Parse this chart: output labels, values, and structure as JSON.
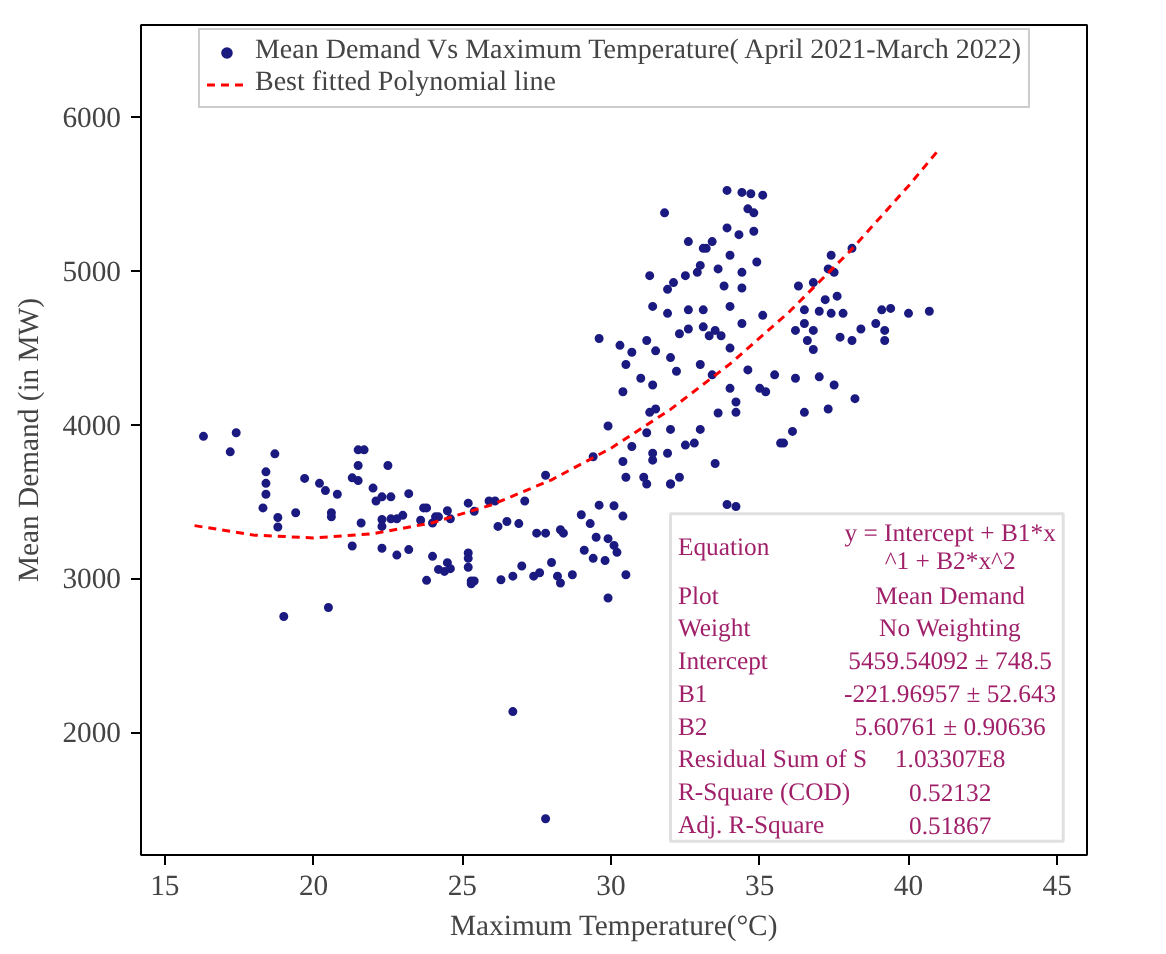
{
  "chart_data": {
    "type": "scatter",
    "xlabel": "Maximum Temperature(°C)",
    "ylabel": "Mean Demand (in MW)",
    "xlim": [
      14.2,
      46
    ],
    "ylim": [
      1200,
      6600
    ],
    "xticks": [
      15,
      20,
      25,
      30,
      35,
      40,
      45
    ],
    "yticks": [
      2000,
      3000,
      4000,
      5000,
      6000
    ],
    "grid": false,
    "legend": "top",
    "series": [
      {
        "name": "Mean Demand Vs Maximum Temperature( April 2021-March 2022)",
        "color": "#1a1a80",
        "marker": "circle",
        "x": [
          16.3,
          17.4,
          17.2,
          18.7,
          18.4,
          18.4,
          18.4,
          18.3,
          18.8,
          18.8,
          19.4,
          19.7,
          20.2,
          20.4,
          20.8,
          20.6,
          20.6,
          21.3,
          21.5,
          21.5,
          21.7,
          21.5,
          22.5,
          22.0,
          22.1,
          22.3,
          22.6,
          23.2,
          21.6,
          22.3,
          22.3,
          22.6,
          22.8,
          23.0,
          23.6,
          23.7,
          23.8,
          24.1,
          24.2,
          24.5,
          25.2,
          25.4,
          24.6,
          24.0,
          21.3,
          22.3,
          22.8,
          23.2,
          24.0,
          24.2,
          24.4,
          24.5,
          24.6,
          23.8,
          25.2,
          25.2,
          25.3,
          25.3,
          19.0,
          20.5,
          25.9,
          26.1,
          27.1,
          27.8,
          26.5,
          26.9,
          26.2,
          27.5,
          27.8,
          28.3,
          28.4,
          29.0,
          29.3,
          29.6,
          30.1,
          30.4,
          29.5,
          29.9,
          30.1,
          30.2,
          29.1,
          29.4,
          29.8,
          30.5,
          29.9,
          26.3,
          26.7,
          27.0,
          27.4,
          27.6,
          28.0,
          28.2,
          28.3,
          28.7,
          25.4,
          25.2,
          26.7,
          27.8,
          31.8,
          32.6,
          33.2,
          32.9,
          32.5,
          32.1,
          31.9,
          31.3,
          31.4,
          31.9,
          32.6,
          32.6,
          32.3,
          29.6,
          30.3,
          31.2,
          31.5,
          30.7,
          30.5,
          32.0,
          31.0,
          31.4,
          32.2,
          30.4,
          29.9,
          30.7,
          31.3,
          31.5,
          31.2,
          32.0,
          32.5,
          32.8,
          31.9,
          31.4,
          30.4,
          30.5,
          31.1,
          31.2,
          32.0,
          32.3,
          31.4,
          29.4,
          33.9,
          34.4,
          34.7,
          35.1,
          34.6,
          34.8,
          33.9,
          34.3,
          34.8,
          33.1,
          33.4,
          34.0,
          33.0,
          33.6,
          34.4,
          34.9,
          33.8,
          34.4,
          33.1,
          34.0,
          35.1,
          33.1,
          33.5,
          34.4,
          33.7,
          34.0,
          33.3,
          33.0,
          33.4,
          34.0,
          34.6,
          35.0,
          35.2,
          35.5,
          34.2,
          34.2,
          33.6,
          33.0,
          35.8,
          33.5,
          33.9,
          37.4,
          38.1,
          37.3,
          37.5,
          36.3,
          36.8,
          37.6,
          37.2,
          36.5,
          37.0,
          37.4,
          37.8,
          36.5,
          36.2,
          36.8,
          36.6,
          36.8,
          37.7,
          38.1,
          38.4,
          38.9,
          39.2,
          39.2,
          39.1,
          39.4,
          40.0,
          40.7,
          36.2,
          37.0,
          37.5,
          38.2,
          37.3,
          36.5,
          36.1,
          35.7,
          32.0,
          34.2
        ],
        "values": [
          3924,
          3947,
          3823,
          3810,
          3693,
          3618,
          3547,
          3458,
          3396,
          3334,
          3427,
          3650,
          3618,
          3571,
          3547,
          3427,
          3400,
          3654,
          3636,
          3836,
          3836,
          3734,
          3734,
          3587,
          3503,
          3530,
          3530,
          3551,
          3360,
          3383,
          3338,
          3387,
          3387,
          3410,
          3378,
          3458,
          3458,
          3400,
          3400,
          3440,
          3489,
          3436,
          3387,
          3360,
          3210,
          3196,
          3151,
          3187,
          3143,
          3058,
          3045,
          3102,
          3063,
          2987,
          3072,
          3165,
          2983,
          2965,
          2752,
          2810,
          3503,
          3503,
          3503,
          3671,
          3370,
          3356,
          3338,
          3294,
          3294,
          3316,
          3294,
          3414,
          3356,
          3476,
          3472,
          3405,
          3267,
          3258,
          3214,
          3169,
          3183,
          3130,
          3116,
          3023,
          2872,
          2991,
          3014,
          3080,
          3014,
          3036,
          3103,
          3014,
          2970,
          3023,
          2983,
          3130,
          2133,
          1436,
          5378,
          5191,
          5147,
          4991,
          4969,
          4924,
          4880,
          4969,
          4769,
          4724,
          4747,
          4622,
          4591,
          4560,
          4516,
          4547,
          4480,
          4471,
          4391,
          4436,
          4302,
          4258,
          4347,
          4214,
          3991,
          3858,
          4080,
          4102,
          3947,
          3969,
          3867,
          3880,
          3814,
          3769,
          3760,
          3658,
          3658,
          3614,
          3614,
          3658,
          3814,
          3791,
          5524,
          5511,
          5502,
          5493,
          5404,
          5378,
          5280,
          5236,
          5258,
          5147,
          5191,
          5102,
          5036,
          5013,
          4991,
          5058,
          4902,
          4889,
          4747,
          4769,
          4711,
          4636,
          4613,
          4658,
          4578,
          4498,
          4578,
          4391,
          4324,
          4236,
          4356,
          4236,
          4214,
          4324,
          4147,
          4080,
          4076,
          3969,
          3880,
          3747,
          3480,
          5102,
          5147,
          5013,
          4991,
          4902,
          4924,
          4836,
          4813,
          4747,
          4738,
          4724,
          4724,
          4658,
          4613,
          4613,
          4547,
          4489,
          4569,
          4547,
          4622,
          4658,
          4613,
          4547,
          4747,
          4756,
          4724,
          4738,
          4302,
          4311,
          4258,
          4169,
          4102,
          4080,
          3956,
          3880,
          3614,
          3467
        ]
      },
      {
        "name": "Best fitted Polynomial line",
        "color": "#ff0000",
        "type": "line",
        "line_style": "dashed",
        "x": [
          16,
          18,
          20,
          22,
          24,
          26,
          28,
          30,
          32,
          34,
          36,
          38,
          40,
          41
        ],
        "values": [
          3343,
          3281,
          3263,
          3290,
          3362,
          3479,
          3641,
          3847,
          4099,
          4395,
          4736,
          5122,
          5553,
          5785
        ]
      }
    ],
    "annotations": [
      "Equation",
      "y = Intercept + B1*x\n^1 + B2*x^2",
      "Plot",
      "Mean Demand",
      "Weight",
      "No Weighting",
      "Intercept",
      "5459.54092 ± 748.5",
      "B1",
      "-221.96957 ± 52.643",
      "B2",
      "5.60761 ± 0.90636",
      "Residual Sum of S",
      "1.03307E8",
      "R-Square (COD)",
      "0.52132",
      "Adj. R-Square",
      "0.51867"
    ]
  }
}
